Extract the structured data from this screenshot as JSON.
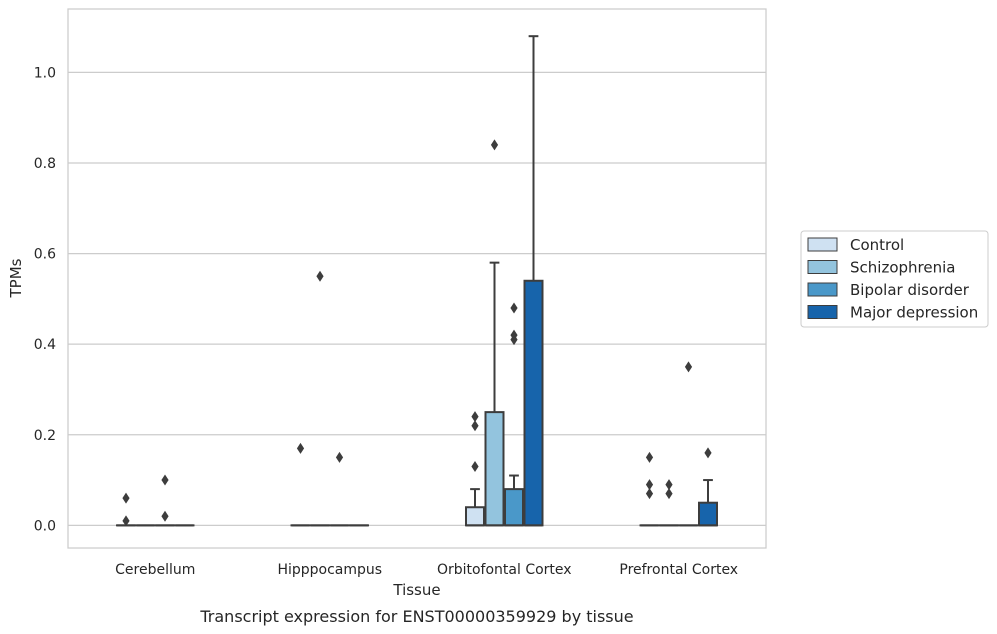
{
  "chart_data": {
    "type": "box",
    "xlabel": "Tissue",
    "ylabel": "TPMs",
    "caption": "Transcript expression for ENST00000359929 by tissue",
    "categories": [
      "Cerebellum",
      "Hipppocampus",
      "Orbitofontal Cortex",
      "Prefrontal Cortex"
    ],
    "ylim": [
      -0.05,
      1.14
    ],
    "yticks": [
      0.0,
      0.2,
      0.4,
      0.6,
      0.8,
      1.0
    ],
    "ytick_labels": [
      "0.0",
      "0.2",
      "0.4",
      "0.6",
      "0.8",
      "1.0"
    ],
    "grid": true,
    "legend_position": "right",
    "series": [
      {
        "name": "Control",
        "color": "#cfe1f2",
        "boxes": [
          {
            "q1": 0,
            "median": 0,
            "q3": 0,
            "whisker_low": 0,
            "whisker_high": 0,
            "outliers": [
              0.01,
              0.06
            ]
          },
          {
            "q1": 0,
            "median": 0,
            "q3": 0,
            "whisker_low": 0,
            "whisker_high": 0,
            "outliers": [
              0.17
            ]
          },
          {
            "q1": 0,
            "median": 0,
            "q3": 0.04,
            "whisker_low": 0,
            "whisker_high": 0.08,
            "outliers": [
              0.13,
              0.22,
              0.24
            ]
          },
          {
            "q1": 0,
            "median": 0,
            "q3": 0,
            "whisker_low": 0,
            "whisker_high": 0,
            "outliers": [
              0.07,
              0.09,
              0.15
            ]
          }
        ]
      },
      {
        "name": "Schizophrenia",
        "color": "#93c4de",
        "boxes": [
          {
            "q1": 0,
            "median": 0,
            "q3": 0,
            "whisker_low": 0,
            "whisker_high": 0,
            "outliers": []
          },
          {
            "q1": 0,
            "median": 0,
            "q3": 0,
            "whisker_low": 0,
            "whisker_high": 0,
            "outliers": [
              0.55
            ]
          },
          {
            "q1": 0,
            "median": 0,
            "q3": 0.25,
            "whisker_low": 0,
            "whisker_high": 0.58,
            "outliers": [
              0.84
            ]
          },
          {
            "q1": 0,
            "median": 0,
            "q3": 0,
            "whisker_low": 0,
            "whisker_high": 0,
            "outliers": [
              0.07,
              0.09
            ]
          }
        ]
      },
      {
        "name": "Bipolar disorder",
        "color": "#4a98c9",
        "boxes": [
          {
            "q1": 0,
            "median": 0,
            "q3": 0,
            "whisker_low": 0,
            "whisker_high": 0,
            "outliers": [
              0.02,
              0.1
            ]
          },
          {
            "q1": 0,
            "median": 0,
            "q3": 0,
            "whisker_low": 0,
            "whisker_high": 0,
            "outliers": [
              0.15
            ]
          },
          {
            "q1": 0,
            "median": 0,
            "q3": 0.08,
            "whisker_low": 0,
            "whisker_high": 0.11,
            "outliers": [
              0.41,
              0.42,
              0.48
            ]
          },
          {
            "q1": 0,
            "median": 0,
            "q3": 0,
            "whisker_low": 0,
            "whisker_high": 0,
            "outliers": [
              0.35
            ]
          }
        ]
      },
      {
        "name": "Major depression",
        "color": "#1764ab",
        "boxes": [
          {
            "q1": 0,
            "median": 0,
            "q3": 0,
            "whisker_low": 0,
            "whisker_high": 0,
            "outliers": []
          },
          {
            "q1": 0,
            "median": 0,
            "q3": 0,
            "whisker_low": 0,
            "whisker_high": 0,
            "outliers": []
          },
          {
            "q1": 0,
            "median": 0,
            "q3": 0.54,
            "whisker_low": 0,
            "whisker_high": 1.08,
            "outliers": []
          },
          {
            "q1": 0,
            "median": 0,
            "q3": 0.05,
            "whisker_low": 0,
            "whisker_high": 0.1,
            "outliers": [
              0.16
            ]
          }
        ]
      }
    ]
  }
}
